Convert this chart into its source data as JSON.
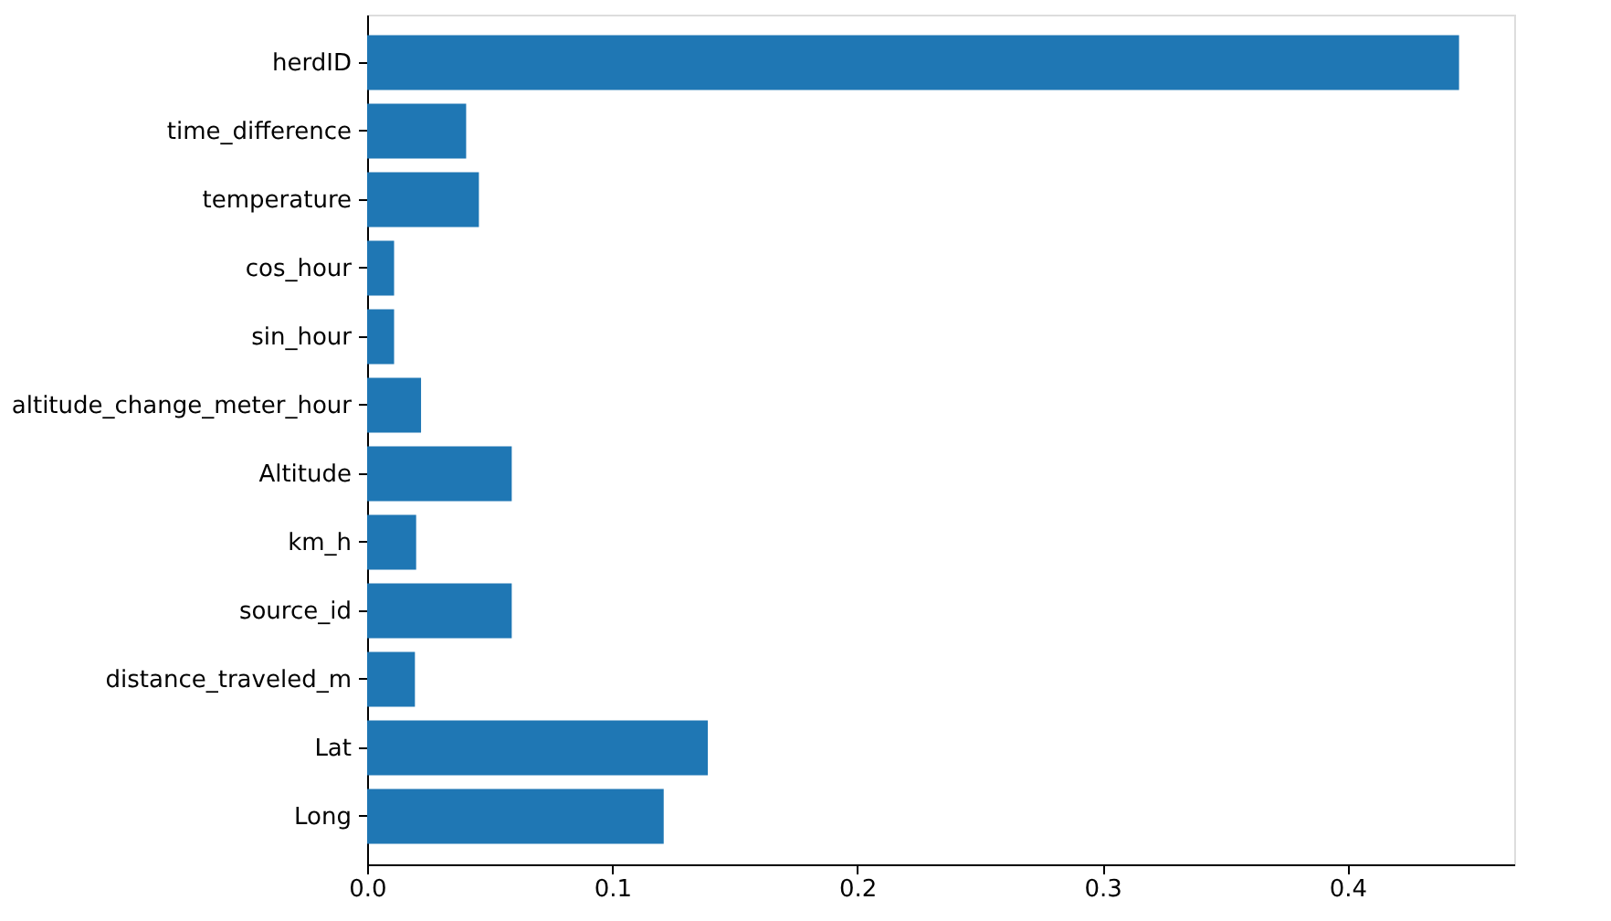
{
  "chart_data": {
    "type": "bar",
    "orientation": "horizontal",
    "categories": [
      "herdID",
      "time_difference",
      "temperature",
      "cos_hour",
      "sin_hour",
      "altitude_change_meter_hour",
      "Altitude",
      "km_h",
      "source_id",
      "distance_traveled_m",
      "Lat",
      "Long"
    ],
    "values": [
      0.4455,
      0.0404,
      0.0456,
      0.011,
      0.011,
      0.022,
      0.059,
      0.02,
      0.059,
      0.0195,
      0.139,
      0.121
    ],
    "color": "#1f77b4",
    "xlim": [
      0,
      0.468
    ],
    "xticks": [
      {
        "value": 0,
        "label": "0.0"
      },
      0.1,
      0.2,
      0.3,
      0.4
    ],
    "grid": false
  }
}
